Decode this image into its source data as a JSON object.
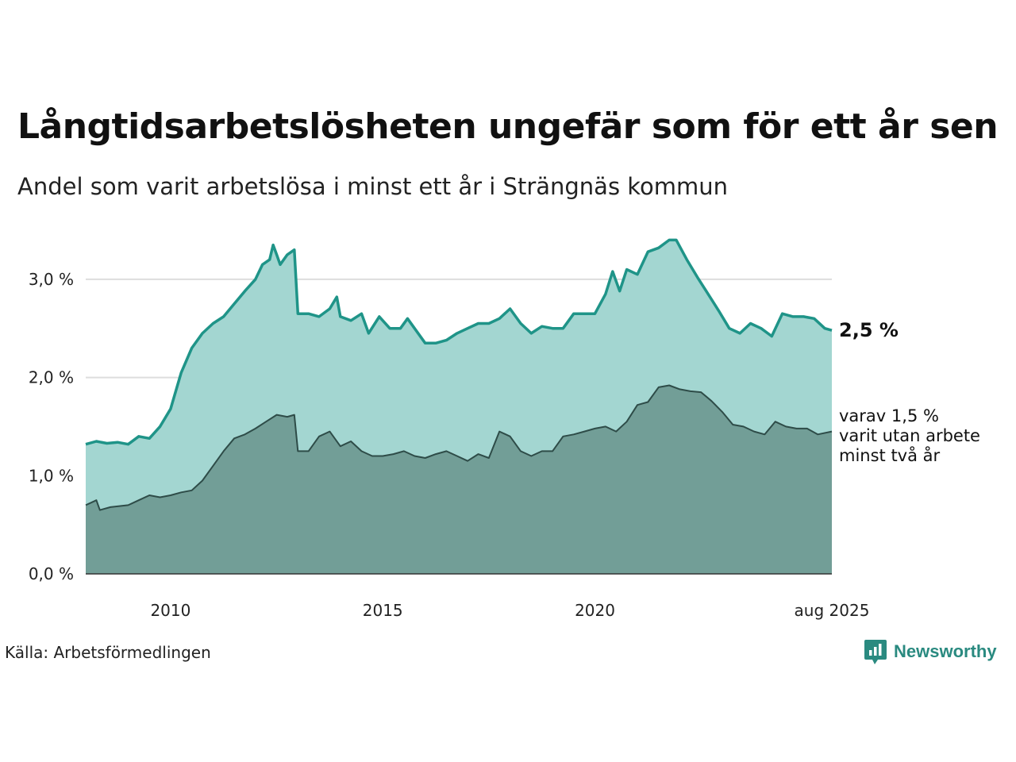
{
  "title": "Långtidsarbetslösheten ungefär som för ett år sen",
  "subtitle": "Andel som varit arbetslösa i minst ett år i Strängnäs kommun",
  "source": "Källa: Arbetsförmedlingen",
  "brand": "Newsworthy",
  "colors": {
    "total_line": "#1f9488",
    "total_fill": "#a3d6d1",
    "long_line": "#2e4c48",
    "long_fill": "#729e97",
    "grid": "#dddddd",
    "brand": "#2a8a80"
  },
  "chart_data": {
    "type": "area",
    "x_start": "2008-01",
    "x_end": "2025-08",
    "xticks": [
      {
        "date": "2010-01",
        "label": "2010"
      },
      {
        "date": "2015-01",
        "label": "2015"
      },
      {
        "date": "2020-01",
        "label": "2020"
      },
      {
        "date": "2025-08",
        "label": "aug 2025"
      }
    ],
    "yticks": [
      {
        "value": 0,
        "label": "0,0 %"
      },
      {
        "value": 1,
        "label": "1,0 %"
      },
      {
        "value": 2,
        "label": "2,0 %"
      },
      {
        "value": 3,
        "label": "3,0 %"
      }
    ],
    "ylim": [
      0,
      3.5
    ],
    "grid": true,
    "annotations": {
      "total": "2,5 %",
      "long": [
        "varav 1,5 %",
        "varit utan arbete",
        "minst två år"
      ]
    },
    "series": [
      {
        "key": "total",
        "points": [
          [
            "2008-01",
            1.32
          ],
          [
            "2008-04",
            1.35
          ],
          [
            "2008-07",
            1.33
          ],
          [
            "2008-10",
            1.34
          ],
          [
            "2009-01",
            1.32
          ],
          [
            "2009-04",
            1.4
          ],
          [
            "2009-07",
            1.38
          ],
          [
            "2009-10",
            1.5
          ],
          [
            "2010-01",
            1.68
          ],
          [
            "2010-04",
            2.05
          ],
          [
            "2010-07",
            2.3
          ],
          [
            "2010-10",
            2.45
          ],
          [
            "2011-01",
            2.55
          ],
          [
            "2011-04",
            2.62
          ],
          [
            "2011-07",
            2.75
          ],
          [
            "2011-10",
            2.88
          ],
          [
            "2012-01",
            3.0
          ],
          [
            "2012-03",
            3.15
          ],
          [
            "2012-05",
            3.2
          ],
          [
            "2012-06",
            3.35
          ],
          [
            "2012-07",
            3.25
          ],
          [
            "2012-08",
            3.15
          ],
          [
            "2012-10",
            3.25
          ],
          [
            "2012-12",
            3.3
          ],
          [
            "2013-01",
            2.65
          ],
          [
            "2013-04",
            2.65
          ],
          [
            "2013-07",
            2.62
          ],
          [
            "2013-10",
            2.7
          ],
          [
            "2013-12",
            2.82
          ],
          [
            "2014-01",
            2.62
          ],
          [
            "2014-04",
            2.58
          ],
          [
            "2014-07",
            2.65
          ],
          [
            "2014-09",
            2.45
          ],
          [
            "2014-12",
            2.62
          ],
          [
            "2015-03",
            2.5
          ],
          [
            "2015-06",
            2.5
          ],
          [
            "2015-08",
            2.6
          ],
          [
            "2015-10",
            2.5
          ],
          [
            "2016-01",
            2.35
          ],
          [
            "2016-04",
            2.35
          ],
          [
            "2016-07",
            2.38
          ],
          [
            "2016-10",
            2.45
          ],
          [
            "2017-01",
            2.5
          ],
          [
            "2017-04",
            2.55
          ],
          [
            "2017-07",
            2.55
          ],
          [
            "2017-10",
            2.6
          ],
          [
            "2018-01",
            2.7
          ],
          [
            "2018-04",
            2.55
          ],
          [
            "2018-07",
            2.45
          ],
          [
            "2018-10",
            2.52
          ],
          [
            "2019-01",
            2.5
          ],
          [
            "2019-04",
            2.5
          ],
          [
            "2019-07",
            2.65
          ],
          [
            "2019-10",
            2.65
          ],
          [
            "2020-01",
            2.65
          ],
          [
            "2020-04",
            2.85
          ],
          [
            "2020-06",
            3.08
          ],
          [
            "2020-08",
            2.88
          ],
          [
            "2020-10",
            3.1
          ],
          [
            "2021-01",
            3.05
          ],
          [
            "2021-04",
            3.28
          ],
          [
            "2021-07",
            3.32
          ],
          [
            "2021-10",
            3.4
          ],
          [
            "2021-12",
            3.4
          ],
          [
            "2022-03",
            3.2
          ],
          [
            "2022-06",
            3.02
          ],
          [
            "2022-09",
            2.85
          ],
          [
            "2022-12",
            2.68
          ],
          [
            "2023-03",
            2.5
          ],
          [
            "2023-06",
            2.45
          ],
          [
            "2023-09",
            2.55
          ],
          [
            "2023-12",
            2.5
          ],
          [
            "2024-03",
            2.42
          ],
          [
            "2024-06",
            2.65
          ],
          [
            "2024-09",
            2.62
          ],
          [
            "2024-12",
            2.62
          ],
          [
            "2025-03",
            2.6
          ],
          [
            "2025-06",
            2.5
          ],
          [
            "2025-08",
            2.48
          ]
        ]
      },
      {
        "key": "long",
        "points": [
          [
            "2008-01",
            0.7
          ],
          [
            "2008-04",
            0.75
          ],
          [
            "2008-05",
            0.65
          ],
          [
            "2008-08",
            0.68
          ],
          [
            "2009-01",
            0.7
          ],
          [
            "2009-04",
            0.75
          ],
          [
            "2009-07",
            0.8
          ],
          [
            "2009-10",
            0.78
          ],
          [
            "2010-01",
            0.8
          ],
          [
            "2010-04",
            0.83
          ],
          [
            "2010-07",
            0.85
          ],
          [
            "2010-10",
            0.95
          ],
          [
            "2011-01",
            1.1
          ],
          [
            "2011-04",
            1.25
          ],
          [
            "2011-07",
            1.38
          ],
          [
            "2011-10",
            1.42
          ],
          [
            "2012-01",
            1.48
          ],
          [
            "2012-04",
            1.55
          ],
          [
            "2012-07",
            1.62
          ],
          [
            "2012-10",
            1.6
          ],
          [
            "2012-12",
            1.62
          ],
          [
            "2013-01",
            1.25
          ],
          [
            "2013-04",
            1.25
          ],
          [
            "2013-07",
            1.4
          ],
          [
            "2013-10",
            1.45
          ],
          [
            "2014-01",
            1.3
          ],
          [
            "2014-04",
            1.35
          ],
          [
            "2014-07",
            1.25
          ],
          [
            "2014-10",
            1.2
          ],
          [
            "2015-01",
            1.2
          ],
          [
            "2015-04",
            1.22
          ],
          [
            "2015-07",
            1.25
          ],
          [
            "2015-10",
            1.2
          ],
          [
            "2016-01",
            1.18
          ],
          [
            "2016-04",
            1.22
          ],
          [
            "2016-07",
            1.25
          ],
          [
            "2016-10",
            1.2
          ],
          [
            "2017-01",
            1.15
          ],
          [
            "2017-04",
            1.22
          ],
          [
            "2017-07",
            1.18
          ],
          [
            "2017-10",
            1.45
          ],
          [
            "2018-01",
            1.4
          ],
          [
            "2018-04",
            1.25
          ],
          [
            "2018-07",
            1.2
          ],
          [
            "2018-10",
            1.25
          ],
          [
            "2019-01",
            1.25
          ],
          [
            "2019-04",
            1.4
          ],
          [
            "2019-07",
            1.42
          ],
          [
            "2019-10",
            1.45
          ],
          [
            "2020-01",
            1.48
          ],
          [
            "2020-04",
            1.5
          ],
          [
            "2020-07",
            1.45
          ],
          [
            "2020-10",
            1.55
          ],
          [
            "2021-01",
            1.72
          ],
          [
            "2021-04",
            1.75
          ],
          [
            "2021-07",
            1.9
          ],
          [
            "2021-10",
            1.92
          ],
          [
            "2022-01",
            1.88
          ],
          [
            "2022-04",
            1.86
          ],
          [
            "2022-07",
            1.85
          ],
          [
            "2022-10",
            1.76
          ],
          [
            "2023-01",
            1.65
          ],
          [
            "2023-04",
            1.52
          ],
          [
            "2023-07",
            1.5
          ],
          [
            "2023-10",
            1.45
          ],
          [
            "2024-01",
            1.42
          ],
          [
            "2024-04",
            1.55
          ],
          [
            "2024-07",
            1.5
          ],
          [
            "2024-10",
            1.48
          ],
          [
            "2025-01",
            1.48
          ],
          [
            "2025-04",
            1.42
          ],
          [
            "2025-08",
            1.45
          ]
        ]
      }
    ]
  }
}
